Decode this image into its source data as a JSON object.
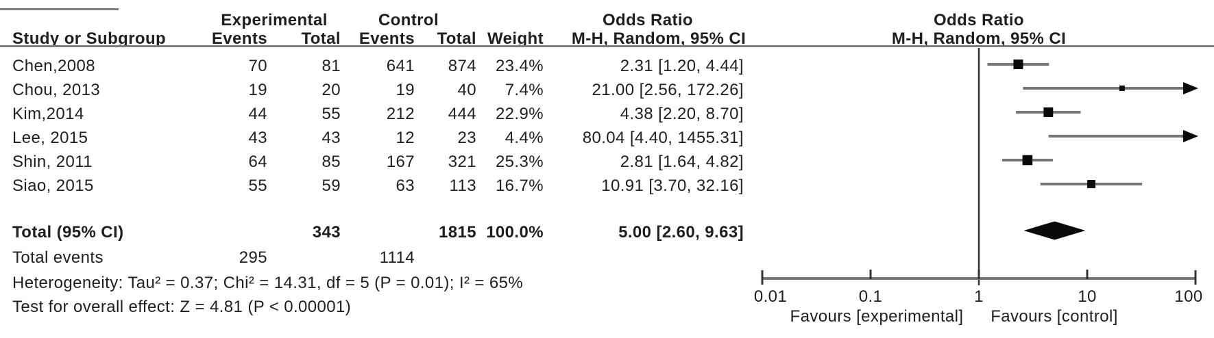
{
  "table": {
    "group_headers": {
      "experimental": "Experimental",
      "control": "Control",
      "odds_ratio_text": "Odds Ratio",
      "odds_ratio_plot": "Odds Ratio"
    },
    "col_headers": {
      "study": "Study or Subgroup",
      "exp_events": "Events",
      "exp_total": "Total",
      "ctrl_events": "Events",
      "ctrl_total": "Total",
      "weight": "Weight",
      "mh_text": "M-H, Random, 95% CI",
      "mh_plot": "M-H, Random, 95% CI"
    },
    "rows": [
      {
        "study": "Chen,2008",
        "e_events": "70",
        "e_total": "81",
        "c_events": "641",
        "c_total": "874",
        "weight": "23.4%",
        "ci": "2.31 [1.20, 4.44]"
      },
      {
        "study": "Chou, 2013",
        "e_events": "19",
        "e_total": "20",
        "c_events": "19",
        "c_total": "40",
        "weight": "7.4%",
        "ci": "21.00 [2.56, 172.26]"
      },
      {
        "study": "Kim,2014",
        "e_events": "44",
        "e_total": "55",
        "c_events": "212",
        "c_total": "444",
        "weight": "22.9%",
        "ci": "4.38 [2.20, 8.70]"
      },
      {
        "study": "Lee, 2015",
        "e_events": "43",
        "e_total": "43",
        "c_events": "12",
        "c_total": "23",
        "weight": "4.4%",
        "ci": "80.04 [4.40, 1455.31]"
      },
      {
        "study": "Shin, 2011",
        "e_events": "64",
        "e_total": "85",
        "c_events": "167",
        "c_total": "321",
        "weight": "25.3%",
        "ci": "2.81 [1.64, 4.82]"
      },
      {
        "study": "Siao, 2015",
        "e_events": "55",
        "e_total": "59",
        "c_events": "63",
        "c_total": "113",
        "weight": "16.7%",
        "ci": "10.91 [3.70, 32.16]"
      }
    ],
    "total_row": {
      "label": "Total (95% CI)",
      "e_total": "343",
      "c_total": "1815",
      "weight": "100.0%",
      "ci": "5.00 [2.60, 9.63]"
    },
    "total_events": {
      "label": "Total events",
      "e_events": "295",
      "c_events": "1114"
    },
    "heterogeneity": "Heterogeneity: Tau² = 0.37; Chi² = 14.31, df = 5 (P = 0.01); I² = 65%",
    "overall_effect": "Test for overall effect: Z = 4.81 (P < 0.00001)"
  },
  "chart_data": {
    "type": "scatter",
    "subtype": "forest-plot",
    "effect_measure": "Odds Ratio, M-H, Random, 95% CI",
    "scale": "log10",
    "xlim": [
      0.01,
      100
    ],
    "null_line": 1,
    "axis_ticks": [
      0.01,
      0.1,
      1,
      10,
      100
    ],
    "axis_tick_labels": [
      "0.01",
      "0.1",
      "1",
      "10",
      "100"
    ],
    "favours_left": "Favours [experimental]",
    "favours_right": "Favours [control]",
    "studies": [
      {
        "name": "Chen,2008",
        "or": 2.31,
        "ci_low": 1.2,
        "ci_high": 4.44,
        "weight": 23.4
      },
      {
        "name": "Chou, 2013",
        "or": 21.0,
        "ci_low": 2.56,
        "ci_high": 172.26,
        "weight": 7.4
      },
      {
        "name": "Kim,2014",
        "or": 4.38,
        "ci_low": 2.2,
        "ci_high": 8.7,
        "weight": 22.9
      },
      {
        "name": "Lee, 2015",
        "or": 80.04,
        "ci_low": 4.4,
        "ci_high": 1455.31,
        "weight": 4.4
      },
      {
        "name": "Shin, 2011",
        "or": 2.81,
        "ci_low": 1.64,
        "ci_high": 4.82,
        "weight": 25.3
      },
      {
        "name": "Siao, 2015",
        "or": 10.91,
        "ci_low": 3.7,
        "ci_high": 32.16,
        "weight": 16.7
      }
    ],
    "total": {
      "label": "Total (95% CI)",
      "or": 5.0,
      "ci_low": 2.6,
      "ci_high": 9.63
    }
  },
  "colors": {
    "text": "#1f1f1f",
    "ci_line": "#767676",
    "axis_line": "#767676",
    "rule_line": "#7d7d7d",
    "null_line": "#333333",
    "marker": "#0a0a0a"
  }
}
